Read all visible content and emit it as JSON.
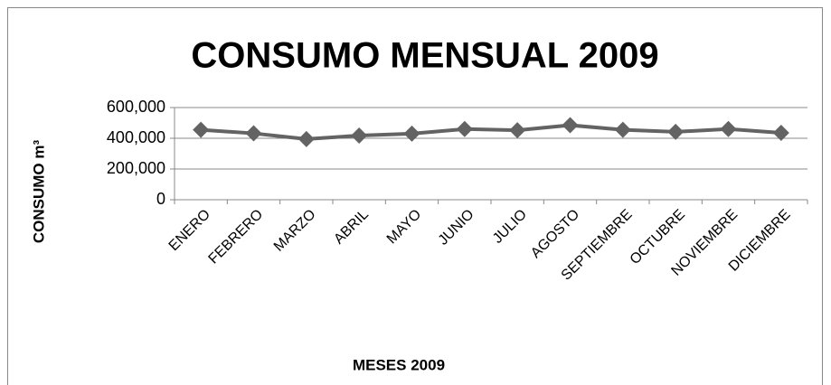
{
  "chart_data": {
    "type": "line",
    "title": "CONSUMO MENSUAL 2009",
    "x_label": "MESES 2009",
    "y_label": "CONSUMO m³",
    "categories": [
      "ENERO",
      "FEBRERO",
      "MARZO",
      "ABRIL",
      "MAYO",
      "JUNIO",
      "JULIO",
      "AGOSTO",
      "SEPTIEMBRE",
      "OCTUBRE",
      "NOVIEMBRE",
      "DICIEMBRE"
    ],
    "values": [
      455000,
      432000,
      395000,
      418000,
      430000,
      460000,
      452000,
      485000,
      455000,
      442000,
      460000,
      435000
    ],
    "color": "#636363",
    "ylim": [
      0,
      600000
    ],
    "yticks": [
      0,
      {
        "value": 200000,
        "label": "200,000"
      },
      {
        "value": 400000,
        "label": "400,000"
      },
      {
        "value": 600000,
        "label": "600,000"
      }
    ],
    "grid": true
  }
}
